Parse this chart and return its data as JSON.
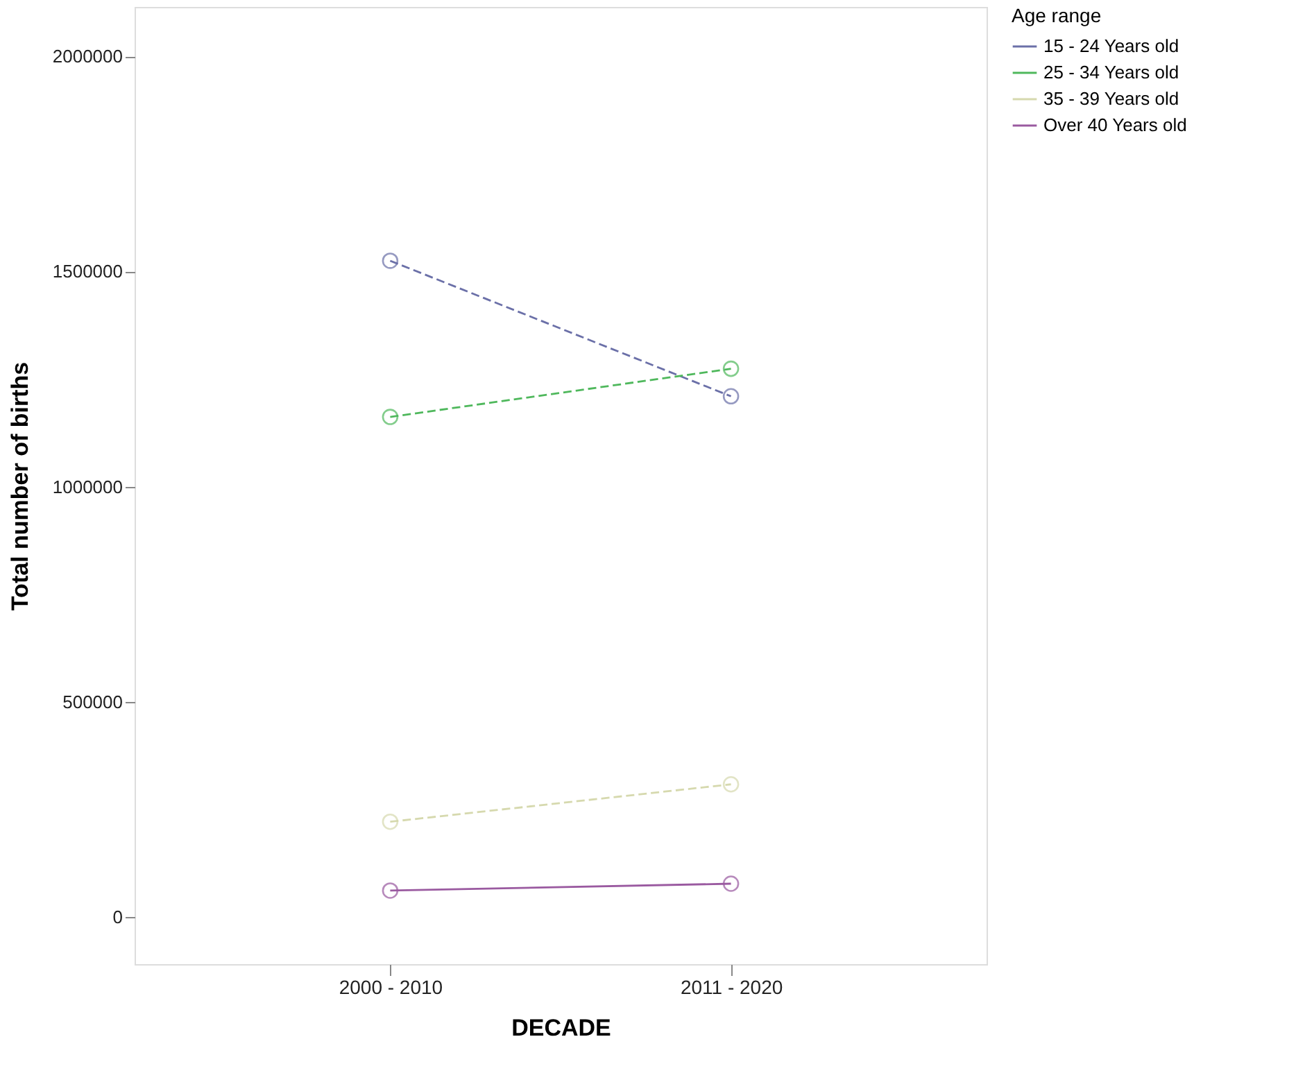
{
  "chart_data": {
    "type": "line",
    "xlabel": "DECADE",
    "ylabel": "Total number of births",
    "legend_title": "Age range",
    "categories": [
      "2000 - 2010",
      "2011 - 2020"
    ],
    "series": [
      {
        "name": "15 - 24 Years old",
        "color": "#6b70a8",
        "values": [
          1525000,
          1210000
        ],
        "line_style": "dashed"
      },
      {
        "name": "25 - 34 Years old",
        "color": "#4fb85c",
        "values": [
          1162000,
          1274000
        ],
        "line_style": "dashed"
      },
      {
        "name": "35 - 39 Years old",
        "color": "#d6d9ae",
        "values": [
          221000,
          308000
        ],
        "line_style": "dashed"
      },
      {
        "name": "Over 40 Years old",
        "color": "#9a5aa0",
        "values": [
          61000,
          77000
        ],
        "line_style": "solid"
      }
    ],
    "ylim": [
      -110000,
      2115000
    ],
    "yticks": [
      0,
      500000,
      1000000,
      1500000,
      2000000
    ],
    "grid": false,
    "legend": "right",
    "marker": "circle"
  }
}
